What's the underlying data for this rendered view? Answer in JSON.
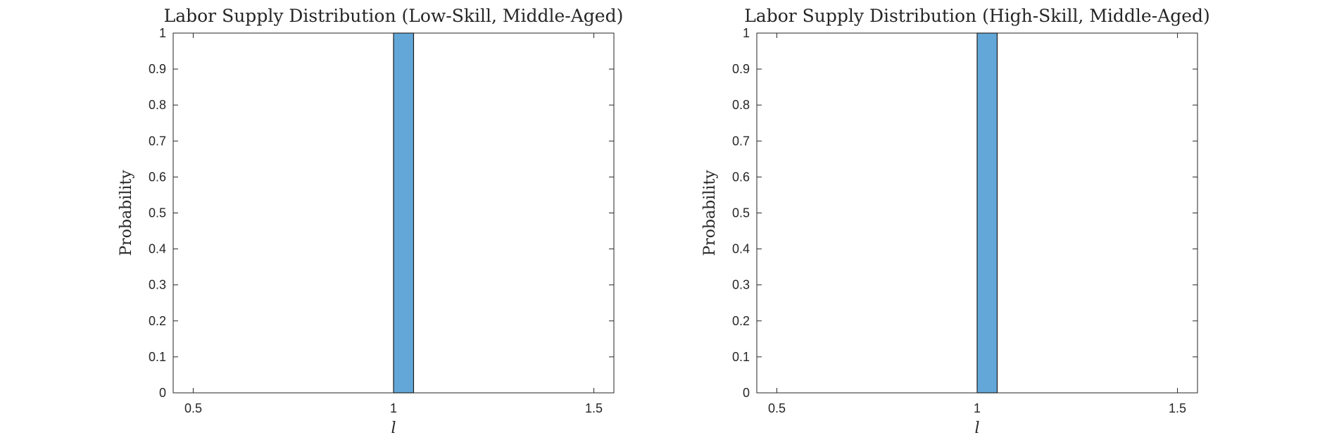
{
  "chart_data": [
    {
      "type": "bar",
      "title": "Labor Supply Distribution (Low-Skill, Middle-Aged)",
      "xlabel": "l",
      "ylabel": "Probability",
      "xlim": [
        0.45,
        1.55
      ],
      "ylim": [
        0,
        1
      ],
      "xticks": [
        0.5,
        1,
        1.5
      ],
      "xtick_labels": [
        "0.5",
        "1",
        "1.5"
      ],
      "yticks": [
        0,
        0.1,
        0.2,
        0.3,
        0.4,
        0.5,
        0.6,
        0.7,
        0.8,
        0.9,
        1
      ],
      "ytick_labels": [
        "0",
        "0.1",
        "0.2",
        "0.3",
        "0.4",
        "0.5",
        "0.6",
        "0.7",
        "0.8",
        "0.9",
        "1"
      ],
      "bins": [
        {
          "x0": 1.0,
          "x1": 1.05,
          "value": 1
        }
      ],
      "bar_color": "#63a7d9",
      "grid": false
    },
    {
      "type": "bar",
      "title": "Labor Supply Distribution (High-Skill, Middle-Aged)",
      "xlabel": "l",
      "ylabel": "Probability",
      "xlim": [
        0.45,
        1.55
      ],
      "ylim": [
        0,
        1
      ],
      "xticks": [
        0.5,
        1,
        1.5
      ],
      "xtick_labels": [
        "0.5",
        "1",
        "1.5"
      ],
      "yticks": [
        0,
        0.1,
        0.2,
        0.3,
        0.4,
        0.5,
        0.6,
        0.7,
        0.8,
        0.9,
        1
      ],
      "ytick_labels": [
        "0",
        "0.1",
        "0.2",
        "0.3",
        "0.4",
        "0.5",
        "0.6",
        "0.7",
        "0.8",
        "0.9",
        "1"
      ],
      "bins": [
        {
          "x0": 1.0,
          "x1": 1.05,
          "value": 1
        }
      ],
      "bar_color": "#63a7d9",
      "grid": false
    }
  ]
}
